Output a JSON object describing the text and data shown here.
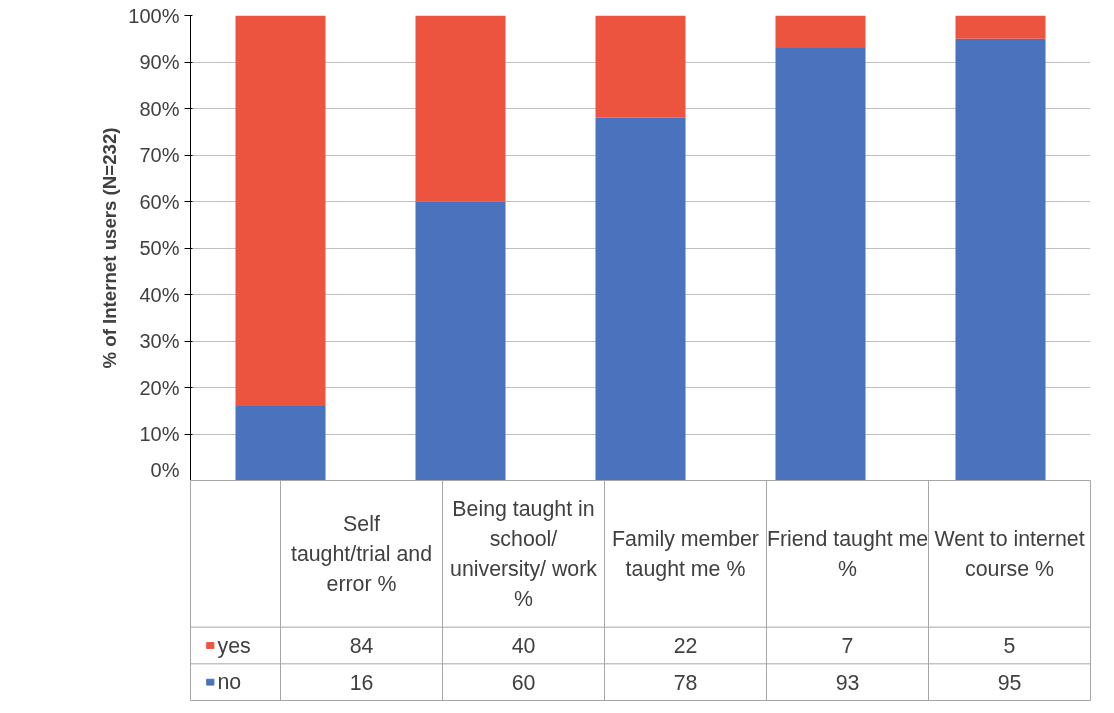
{
  "chart_data": {
    "type": "bar",
    "stacked": true,
    "ylabel": "% of Internet users (N=232)",
    "categories": [
      "Self taught/trial and error %",
      "Being taught in school/ university/ work %",
      "Family member taught me %",
      "Friend taught me %",
      "Went to internet course %"
    ],
    "series": [
      {
        "name": "no",
        "color": "#4a72bd",
        "values": [
          16,
          60,
          78,
          93,
          95
        ]
      },
      {
        "name": "yes",
        "color": "#ec5440",
        "values": [
          84,
          40,
          22,
          7,
          5
        ]
      }
    ],
    "ylim": [
      0,
      100
    ],
    "yticks": [
      {
        "value": 0,
        "label": "0%"
      },
      {
        "value": 10,
        "label": "10%"
      },
      {
        "value": 20,
        "label": "20%"
      },
      {
        "value": 30,
        "label": "30%"
      },
      {
        "value": 40,
        "label": "40%"
      },
      {
        "value": 50,
        "label": "50%"
      },
      {
        "value": 60,
        "label": "60%"
      },
      {
        "value": 70,
        "label": "70%"
      },
      {
        "value": 80,
        "label": "80%"
      },
      {
        "value": 90,
        "label": "90%"
      },
      {
        "value": 100,
        "label": "100%"
      }
    ],
    "grid": "y",
    "legend": "bottom left",
    "data_labels": true
  }
}
